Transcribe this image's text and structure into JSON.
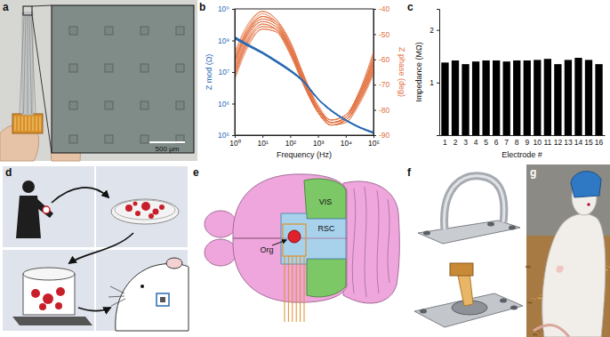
{
  "panel_labels": [
    "a",
    "b",
    "c",
    "d",
    "e",
    "f",
    "g"
  ],
  "scale_bar": "500 µm",
  "brain_labels": [
    "VIS",
    "RSC",
    "Org"
  ],
  "chart_data": [
    {
      "type": "line",
      "log": true,
      "x_label": "Frequency (Hz)",
      "y_label": "Z mod (Ω)",
      "y2_label": "Z phase (deg)",
      "xlim": [
        1,
        100000
      ],
      "xticks": [
        {
          "value": 1,
          "label": "10⁰"
        },
        {
          "value": 10,
          "label": "10¹"
        },
        {
          "value": 100,
          "label": "10²"
        },
        {
          "value": 1000,
          "label": "10³"
        },
        {
          "value": 10000,
          "label": "10⁴"
        },
        {
          "value": 100000,
          "label": "10⁵"
        }
      ],
      "ylim": [
        100000,
        1000000000
      ],
      "yticks": [
        {
          "value": 100000,
          "label": "10⁵"
        },
        {
          "value": 1000000,
          "label": "10⁶"
        },
        {
          "value": 10000000,
          "label": "10⁷"
        },
        {
          "value": 100000000,
          "label": "10⁸"
        },
        {
          "value": 1000000000,
          "label": "10⁹"
        }
      ],
      "y2lim": [
        -90,
        -40
      ],
      "y2ticks": [
        -90,
        -80,
        -70,
        -60,
        -50,
        -40
      ],
      "x": [
        1,
        3,
        10,
        30,
        100,
        300,
        1000,
        3000,
        10000,
        30000,
        100000
      ],
      "series": [
        {
          "color": "#e2703e",
          "axis": "y2",
          "values": [
            -60,
            -48,
            -42,
            -45,
            -54,
            -67,
            -79,
            -85,
            -83,
            -74,
            -60
          ]
        },
        {
          "color": "#e2703e",
          "axis": "y2",
          "values": [
            -64,
            -51,
            -45,
            -47,
            -56,
            -69,
            -80,
            -85,
            -84,
            -76,
            -63
          ]
        },
        {
          "color": "#e2703e",
          "axis": "y2",
          "values": [
            -58,
            -47,
            -41,
            -44,
            -53,
            -66,
            -79,
            -84,
            -82,
            -73,
            -58
          ]
        },
        {
          "color": "#e2703e",
          "axis": "y2",
          "values": [
            -66,
            -53,
            -47,
            -48,
            -57,
            -69,
            -81,
            -86,
            -84,
            -77,
            -65
          ]
        },
        {
          "color": "#e2703e",
          "axis": "y2",
          "values": [
            -61,
            -49,
            -43,
            -45,
            -55,
            -68,
            -80,
            -85,
            -83,
            -75,
            -61
          ]
        },
        {
          "color": "#e2703e",
          "axis": "y2",
          "values": [
            -68,
            -55,
            -48,
            -49,
            -58,
            -70,
            -81,
            -86,
            -85,
            -78,
            -66
          ]
        },
        {
          "color": "#e2703e",
          "axis": "y2",
          "values": [
            -59,
            -48,
            -43,
            -46,
            -55,
            -67,
            -79,
            -84,
            -82,
            -74,
            -59
          ]
        },
        {
          "color": "#e2703e",
          "axis": "y2",
          "values": [
            -63,
            -50,
            -44,
            -46,
            -56,
            -68,
            -80,
            -85,
            -83,
            -75,
            -62
          ]
        },
        {
          "color": "#e2703e",
          "axis": "y2",
          "values": [
            -65,
            -52,
            -46,
            -48,
            -57,
            -69,
            -81,
            -86,
            -84,
            -76,
            -64
          ]
        },
        {
          "color": "#e2703e",
          "axis": "y2",
          "values": [
            -57,
            -46,
            -41,
            -44,
            -53,
            -66,
            -78,
            -84,
            -82,
            -73,
            -57
          ]
        },
        {
          "color": "#e2703e",
          "axis": "y2",
          "values": [
            -62,
            -50,
            -45,
            -47,
            -56,
            -68,
            -80,
            -85,
            -83,
            -75,
            -62
          ]
        },
        {
          "color": "#e2703e",
          "axis": "y2",
          "values": [
            -67,
            -54,
            -48,
            -49,
            -58,
            -70,
            -81,
            -86,
            -85,
            -77,
            -65
          ]
        },
        {
          "color": "#e2703e",
          "axis": "y2",
          "values": [
            -60,
            -49,
            -44,
            -46,
            -55,
            -67,
            -79,
            -85,
            -83,
            -74,
            -60
          ]
        },
        {
          "color": "#e2703e",
          "axis": "y2",
          "values": [
            -64,
            -52,
            -46,
            -48,
            -56,
            -69,
            -80,
            -86,
            -84,
            -76,
            -63
          ]
        },
        {
          "color": "#e2703e",
          "axis": "y2",
          "values": [
            -61,
            -49,
            -43,
            -45,
            -54,
            -67,
            -79,
            -85,
            -83,
            -74,
            -61
          ]
        },
        {
          "color": "#e2703e",
          "axis": "y2",
          "values": [
            -66,
            -53,
            -47,
            -48,
            -57,
            -70,
            -81,
            -86,
            -84,
            -77,
            -64
          ]
        },
        {
          "color": "#2b6cb3",
          "values": [
            120000000.0,
            70000000.0,
            40000000.0,
            22000000.0,
            11000000.0,
            4900000.0,
            1380000.0,
            600000.0,
            300000.0,
            180000.0,
            120000.0
          ]
        },
        {
          "color": "#2b6cb3",
          "values": [
            125000000.0,
            72000000.0,
            41000000.0,
            23000000.0,
            11500000.0,
            5100000.0,
            1420000.0,
            610000.0,
            300000.0,
            180000.0,
            120000.0
          ]
        },
        {
          "color": "#2b6cb3",
          "values": [
            115000000.0,
            68000000.0,
            39000000.0,
            21000000.0,
            10500000.0,
            4800000.0,
            1350000.0,
            580000.0,
            290000.0,
            175000.0,
            115000.0
          ]
        },
        {
          "color": "#2b6cb3",
          "values": [
            120000000.0,
            71000000.0,
            40000000.0,
            22000000.0,
            11000000.0,
            5000000.0,
            1400000.0,
            600000.0,
            300000.0,
            180000.0,
            120000.0
          ]
        },
        {
          "color": "#2b6cb3",
          "values": [
            130000000.0,
            74000000.0,
            42000000.0,
            23000000.0,
            11500000.0,
            5100000.0,
            1420000.0,
            610000.0,
            300000.0,
            180000.0,
            120000.0
          ]
        },
        {
          "color": "#2b6cb3",
          "values": [
            122000000.0,
            71000000.0,
            41000000.0,
            22500000.0,
            11200000.0,
            5100000.0,
            1420000.0,
            610000.0,
            305000.0,
            180000.0,
            120000.0
          ]
        },
        {
          "color": "#2b6cb3",
          "values": [
            118000000.0,
            69000000.0,
            40000000.0,
            22000000.0,
            11000000.0,
            5000000.0,
            1400000.0,
            600000.0,
            300000.0,
            180000.0,
            120000.0
          ]
        },
        {
          "color": "#2b6cb3",
          "values": [
            127000000.0,
            73000000.0,
            42000000.0,
            23000000.0,
            11300000.0,
            5100000.0,
            1420000.0,
            610000.0,
            300000.0,
            180000.0,
            120000.0
          ]
        },
        {
          "color": "#2b6cb3",
          "values": [
            121000000.0,
            70000000.0,
            40000000.0,
            22000000.0,
            11200000.0,
            5100000.0,
            1420000.0,
            610000.0,
            300000.0,
            180000.0,
            120000.0
          ]
        },
        {
          "color": "#2b6cb3",
          "values": [
            124000000.0,
            72000000.0,
            41000000.0,
            22500000.0,
            11400000.0,
            5200000.0,
            1430000.0,
            610000.0,
            305000.0,
            182000.0,
            122000.0
          ]
        },
        {
          "color": "#2b6cb3",
          "values": [
            130000000.0,
            75000000.0,
            43000000.0,
            23500000.0,
            11700000.0,
            5300000.0,
            1450000.0,
            620000.0,
            310000.0,
            185000.0,
            125000.0
          ]
        },
        {
          "color": "#2b6cb3",
          "values": [
            112000000.0,
            66000000.0,
            38000000.0,
            21000000.0,
            10500000.0,
            4800000.0,
            1350000.0,
            580000.0,
            290000.0,
            175000.0,
            115000.0
          ]
        },
        {
          "color": "#2b6cb3",
          "values": [
            126000000.0,
            73000000.0,
            42000000.0,
            23000000.0,
            11400000.0,
            5200000.0,
            1430000.0,
            610000.0,
            305000.0,
            182000.0,
            120000.0
          ]
        },
        {
          "color": "#2b6cb3",
          "values": [
            132000000.0,
            76000000.0,
            43000000.0,
            24000000.0,
            11800000.0,
            5400000.0,
            1470000.0,
            630000.0,
            310000.0,
            186000.0,
            125000.0
          ]
        },
        {
          "color": "#2b6cb3",
          "values": [
            123000000.0,
            72000000.0,
            41000000.0,
            23000000.0,
            11400000.0,
            5200000.0,
            1430000.0,
            610000.0,
            300000.0,
            182000.0,
            120000.0
          ]
        },
        {
          "color": "#2b6cb3",
          "values": [
            114000000.0,
            67000000.0,
            39000000.0,
            21000000.0,
            10500000.0,
            4800000.0,
            1350000.0,
            580000.0,
            290000.0,
            175000.0,
            115000.0
          ]
        }
      ]
    },
    {
      "type": "bar",
      "color": "#000000",
      "x_label": "Electrode #",
      "y_label": "Impedance (MΩ)",
      "categories": [
        "1",
        "2",
        "3",
        "4",
        "5",
        "6",
        "7",
        "8",
        "9",
        "10",
        "11",
        "12",
        "13",
        "14",
        "15",
        "16"
      ],
      "values": [
        1.38,
        1.42,
        1.35,
        1.4,
        1.42,
        1.42,
        1.4,
        1.42,
        1.42,
        1.43,
        1.45,
        1.35,
        1.43,
        1.47,
        1.43,
        1.35
      ],
      "ylim": [
        0,
        2.4
      ],
      "yticks": [
        1,
        2
      ]
    }
  ]
}
